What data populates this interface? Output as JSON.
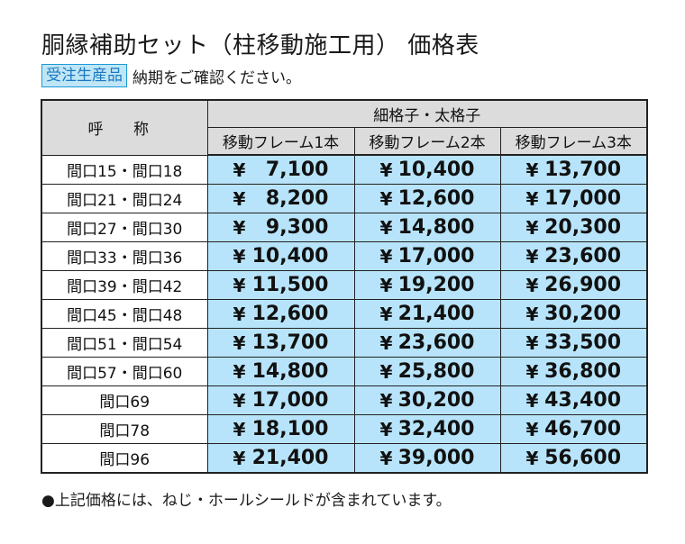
{
  "title": "胴縁補助セット（柱移動施工用） 価格表",
  "badge": "受注生産品",
  "note": "納期をご確認ください。",
  "table": {
    "name_header": "呼 称",
    "group_header": "細格子・太格子",
    "columns": [
      "移動フレーム1本",
      "移動フレーム2本",
      "移動フレーム3本"
    ],
    "currency": "¥",
    "rows": [
      {
        "name": "間口15・間口18",
        "prices": [
          "7,100",
          "10,400",
          "13,700"
        ]
      },
      {
        "name": "間口21・間口24",
        "prices": [
          "8,200",
          "12,600",
          "17,000"
        ]
      },
      {
        "name": "間口27・間口30",
        "prices": [
          "9,300",
          "14,800",
          "20,300"
        ]
      },
      {
        "name": "間口33・間口36",
        "prices": [
          "10,400",
          "17,000",
          "23,600"
        ]
      },
      {
        "name": "間口39・間口42",
        "prices": [
          "11,500",
          "19,200",
          "26,900"
        ]
      },
      {
        "name": "間口45・間口48",
        "prices": [
          "12,600",
          "21,400",
          "30,200"
        ]
      },
      {
        "name": "間口51・間口54",
        "prices": [
          "13,700",
          "23,600",
          "33,500"
        ]
      },
      {
        "name": "間口57・間口60",
        "prices": [
          "14,800",
          "25,800",
          "36,800"
        ]
      },
      {
        "name": "間口69",
        "prices": [
          "17,000",
          "30,200",
          "43,400"
        ]
      },
      {
        "name": "間口78",
        "prices": [
          "18,100",
          "32,400",
          "46,700"
        ]
      },
      {
        "name": "間口96",
        "prices": [
          "21,400",
          "39,000",
          "56,600"
        ]
      }
    ]
  },
  "footnote": "●上記価格には、ねじ・ホールシールドが含まれています。",
  "colors": {
    "header_bg": "#dcdcdc",
    "price_bg": "#b7e4fa",
    "badge_bg": "#bfe6f6",
    "badge_text": "#1a78c2"
  }
}
